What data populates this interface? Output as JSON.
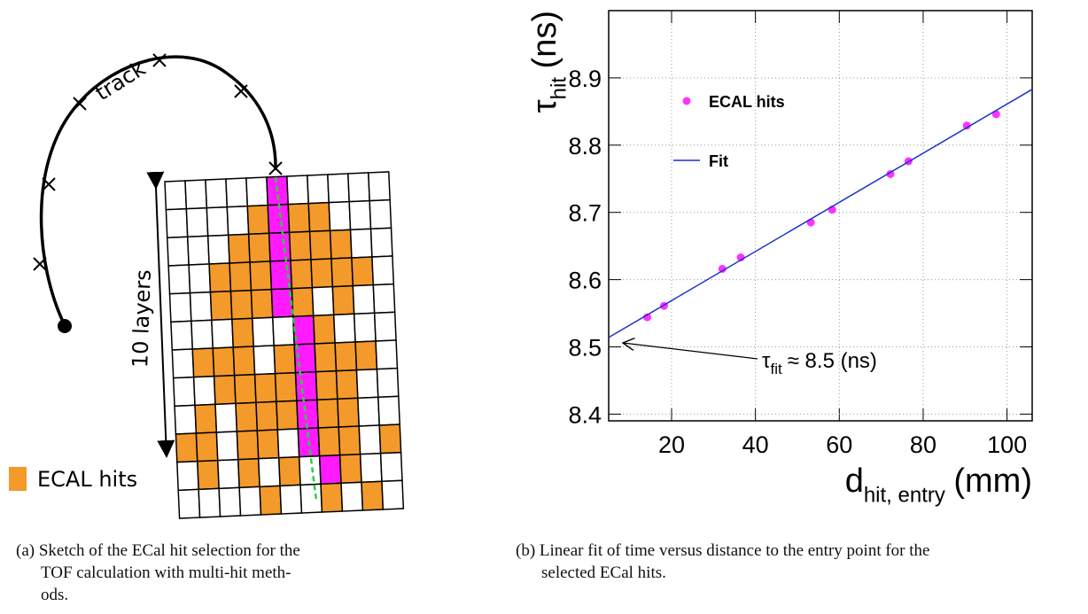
{
  "sketch": {
    "track_label": "track",
    "layers_label": "10 layers",
    "legend_label": "ECAL hits"
  },
  "captions": [
    [
      "(a) Sketch of the ECal hit selection for the",
      "TOF calculation with multi-hit meth-",
      "ods."
    ],
    [
      "(b) Linear fit of time versus distance to the entry point for the",
      "selected ECal hits."
    ]
  ],
  "chart_data": {
    "type": "scatter",
    "xlabel": [
      "d",
      "hit, entry",
      "(mm)"
    ],
    "ylabel": [
      "τ",
      "hit",
      "(ns)"
    ],
    "annotation": [
      "τ",
      "fit",
      "≈ 8.5 (ns)"
    ],
    "xlim": [
      5,
      106
    ],
    "ylim": [
      8.39,
      9.0
    ],
    "xticks": [
      20,
      40,
      60,
      80,
      100
    ],
    "yticks": [
      8.4,
      8.5,
      8.6,
      8.7,
      8.8,
      8.9
    ],
    "grid": true,
    "legend": "upper left",
    "series": [
      {
        "name": "ECAL hits",
        "color": "#ff33ff",
        "type": "scatter",
        "x": [
          14.2,
          18.2,
          32.1,
          36.5,
          53.2,
          58.3,
          72.2,
          76.5,
          90.4,
          97.4
        ],
        "values": [
          8.544,
          8.561,
          8.616,
          8.633,
          8.685,
          8.704,
          8.757,
          8.776,
          8.829,
          8.846
        ]
      },
      {
        "name": "Fit",
        "color": "#1a2fd0",
        "type": "line",
        "x": [
          5,
          106
        ],
        "values": [
          8.514,
          8.883
        ]
      }
    ]
  }
}
